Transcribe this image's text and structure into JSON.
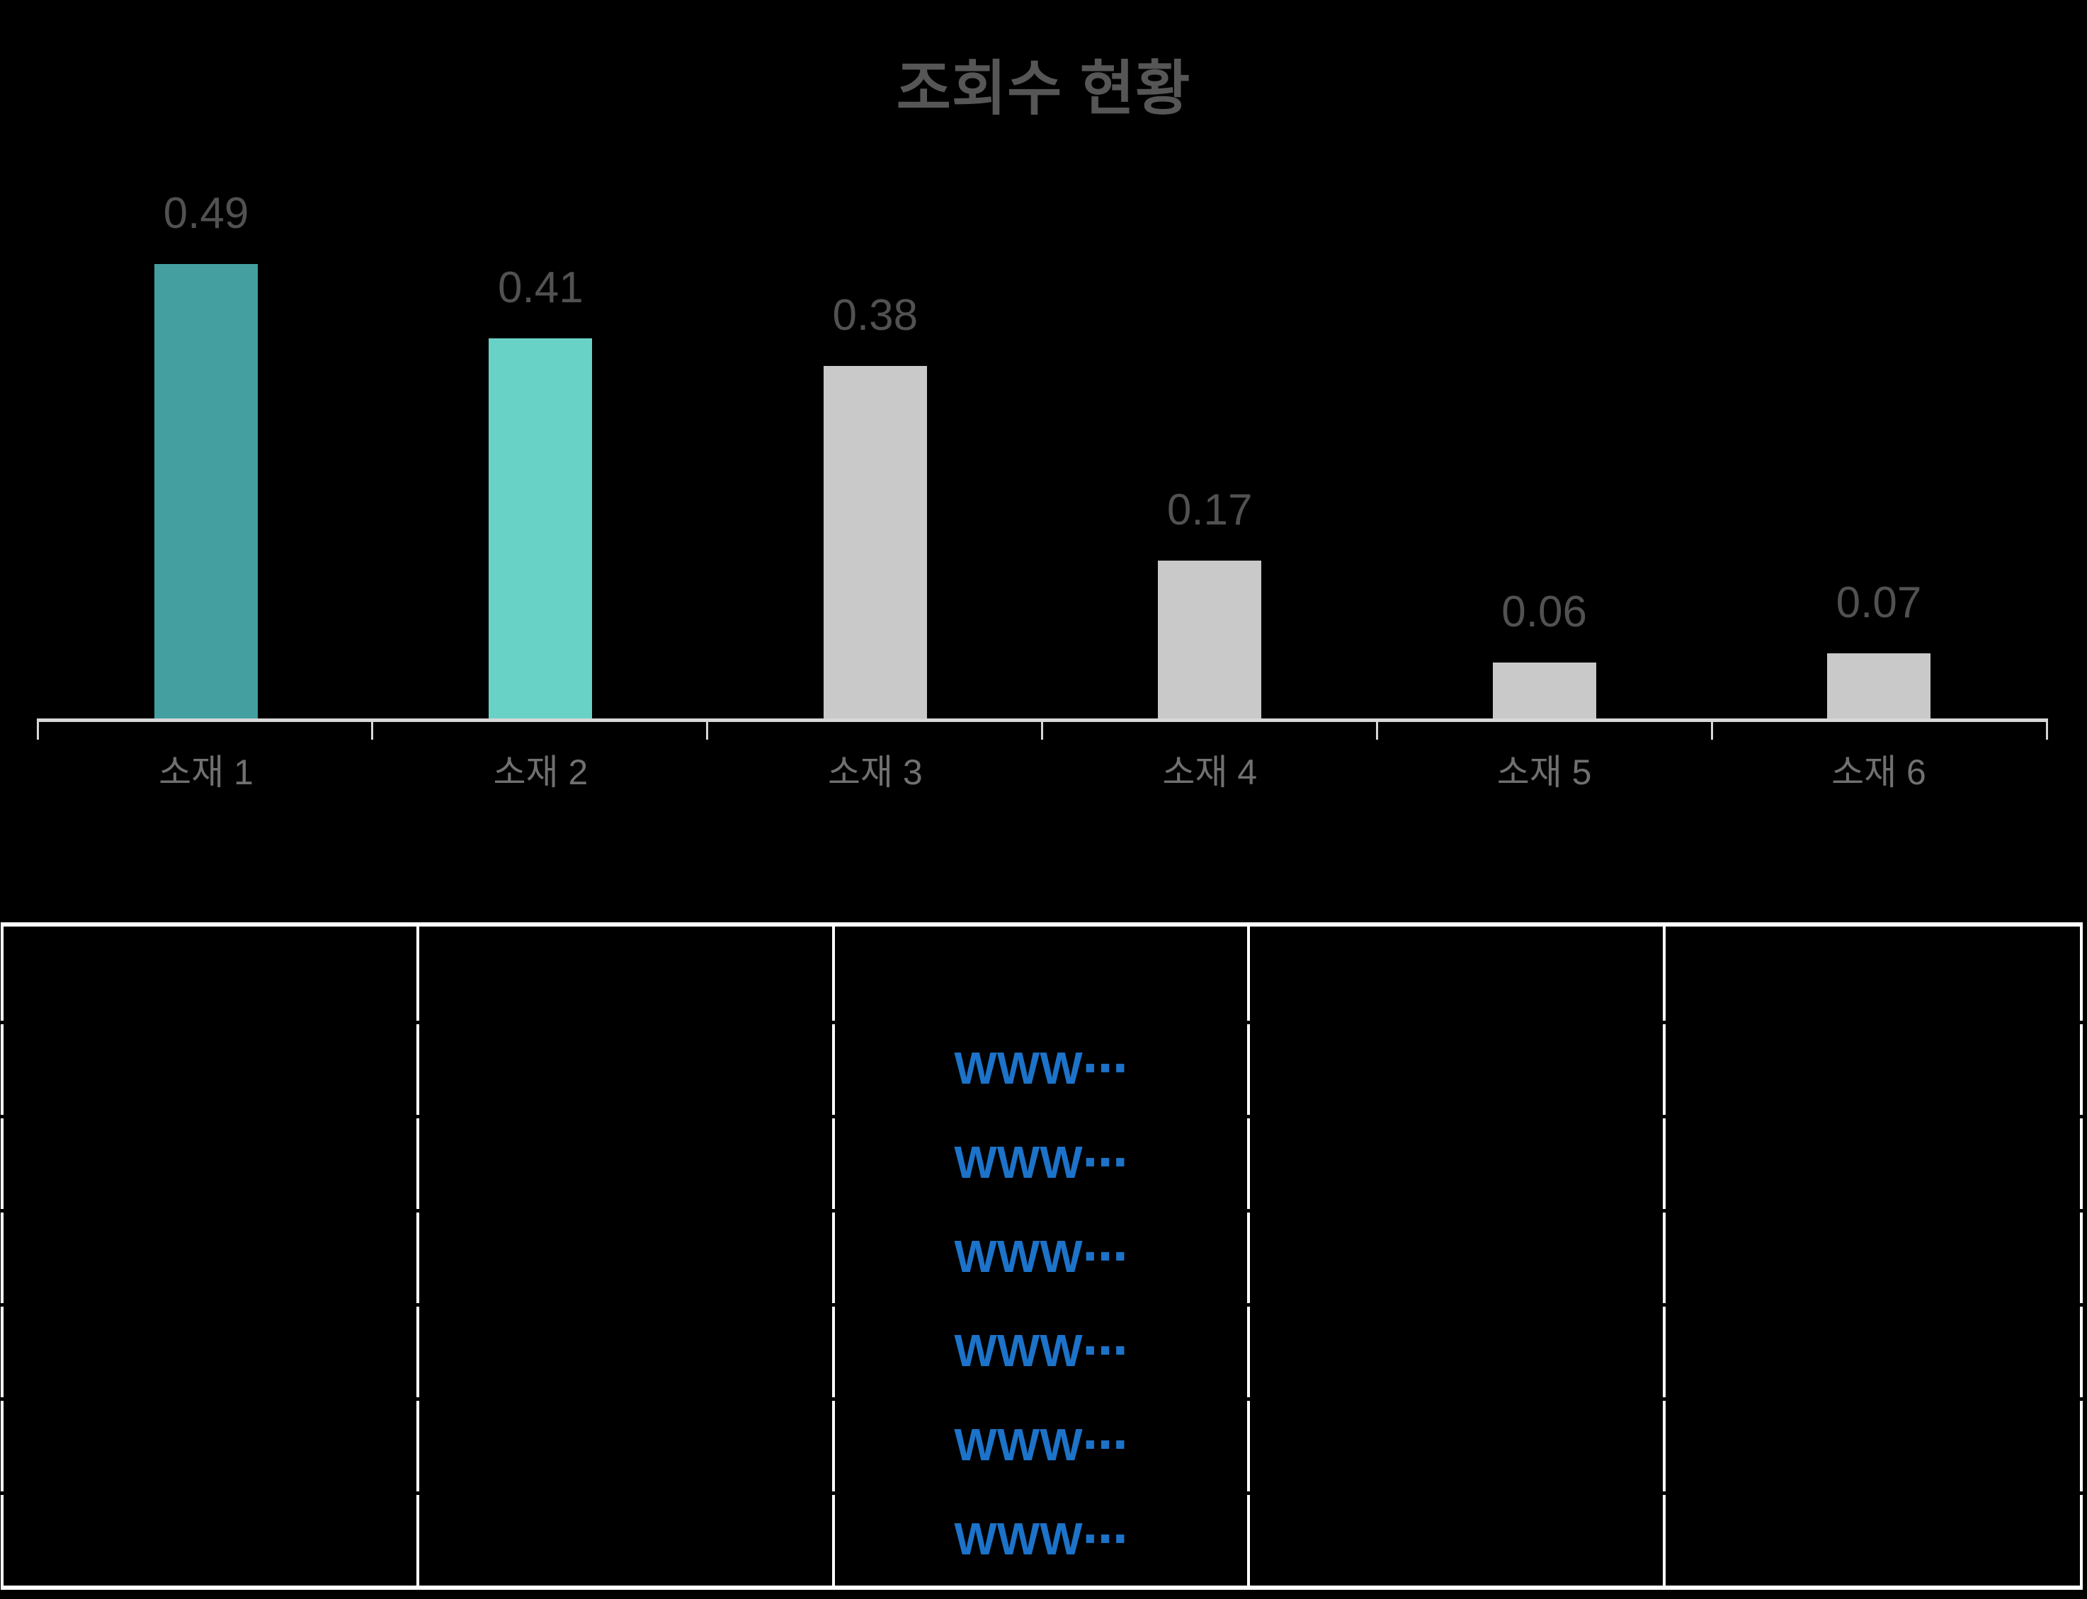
{
  "chart_data": {
    "type": "bar",
    "title": "조회수 현황",
    "categories": [
      "소재 1",
      "소재 2",
      "소재 3",
      "소재 4",
      "소재 5",
      "소재 6"
    ],
    "values": [
      0.49,
      0.41,
      0.38,
      0.17,
      0.06,
      0.07
    ],
    "value_labels": [
      "0.49",
      "0.41",
      "0.38",
      "0.17",
      "0.06",
      "0.07"
    ],
    "bar_colors": [
      "#44A0A0",
      "#69D2C7",
      "#C9C9C9",
      "#C9C9C9",
      "#C9C9C9",
      "#C9C9C9"
    ],
    "xlabel": "",
    "ylabel": "",
    "ylim": [
      0,
      0.55
    ],
    "grid": false,
    "legend": false,
    "colors": {
      "background": "#000000",
      "title": "#565656",
      "value_label": "#515151",
      "category_label": "#707070",
      "axis": "#D7D7D7"
    }
  },
  "table": {
    "columns": 5,
    "rows": 7,
    "border_color": "#FFFFFF",
    "link_color": "#1C73C9",
    "links_column_index": 3,
    "links": [
      "WWW⋯",
      "WWW⋯",
      "WWW⋯",
      "WWW⋯",
      "WWW⋯",
      "WWW⋯"
    ]
  }
}
